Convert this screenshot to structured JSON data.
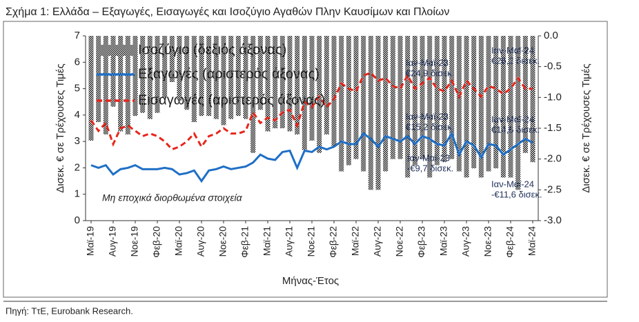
{
  "chart_data": {
    "type": "combo",
    "title": "Σχήμα 1: Ελλάδα – Εξαγωγές, Εισαγωγές και Ισοζύγιο Αγαθών Πλην Καυσίμων και Πλοίων",
    "xlabel": "Μήνας-Έτος",
    "ylabel": "Δισεκ. € σε Τρέχουσες Τιμές",
    "y2label": "Δισεκ. € σε Τρέχουσες Τιμές",
    "note": "Μη εποχικά διορθωμένα στοιχεία",
    "source": "Πηγή: ΤτΕ, Eurobank Research.",
    "legend": "upper left",
    "categories": [
      "Μαϊ-19",
      null,
      null,
      "Αυγ-19",
      null,
      null,
      "Νοε-19",
      null,
      null,
      "Φεβ-20",
      null,
      null,
      "Μαϊ-20",
      null,
      null,
      "Αυγ-20",
      null,
      null,
      "Νοε-20",
      null,
      null,
      "Φεβ-21",
      null,
      null,
      "Μαϊ-21",
      null,
      null,
      "Αυγ-21",
      null,
      null,
      "Νοε-21",
      null,
      null,
      "Φεβ-22",
      null,
      null,
      "Μαϊ-22",
      null,
      null,
      "Αυγ-22",
      null,
      null,
      "Νοε-22",
      null,
      null,
      "Φεβ-23",
      null,
      null,
      "Μαϊ-23",
      null,
      null,
      "Αυγ-23",
      null,
      null,
      "Νοε-23",
      null,
      null,
      "Φεβ-24",
      null,
      null,
      "Μαϊ-24"
    ],
    "ylim": [
      0,
      7
    ],
    "yticks": [
      0,
      1,
      2,
      3,
      4,
      5,
      6,
      7
    ],
    "y2lim": [
      -3,
      0
    ],
    "y2ticks": [
      {
        "value": -3,
        "label": "-3.0"
      },
      -2.5,
      {
        "value": -2,
        "label": "-2.0"
      },
      -1.5,
      {
        "value": -1,
        "label": "-1.0"
      },
      -0.5,
      {
        "value": 0,
        "label": "0.0"
      }
    ],
    "series": [
      {
        "name": "Ισοζύγιο (δεξιός άξονας)",
        "type": "bar",
        "axis": "y2",
        "color": "#9a9a9a",
        "values": [
          -1.7,
          -1.4,
          -1.6,
          -1.15,
          -1.55,
          -1.6,
          -1.3,
          -1.25,
          -1.35,
          -1.25,
          -1.0,
          -0.75,
          -1.05,
          -1.2,
          -1.4,
          -1.3,
          -1.3,
          -1.35,
          -1.45,
          -1.35,
          -1.3,
          -1.35,
          -1.9,
          -1.2,
          -1.55,
          -1.5,
          -1.5,
          -1.55,
          -1.6,
          -1.85,
          -1.7,
          -1.9,
          -1.6,
          -1.8,
          -2.2,
          -2.1,
          -2.0,
          -2.2,
          -2.5,
          -2.5,
          -2.2,
          -2.0,
          -2.0,
          -2.3,
          -2.1,
          -2.0,
          -2.3,
          -2.1,
          -2.05,
          -2.0,
          -2.2,
          -2.3,
          -2.15,
          -2.3,
          -2.2,
          -2.15,
          -2.3,
          -2.3,
          -2.5,
          -1.9,
          -2.05
        ]
      },
      {
        "name": "Εξαγωγές (αριστερός άξονας)",
        "type": "line",
        "color": "#1f6fc6",
        "values": [
          2.1,
          2.0,
          2.1,
          1.75,
          1.95,
          2.0,
          2.1,
          1.95,
          1.95,
          1.95,
          2.0,
          1.95,
          1.75,
          1.8,
          1.9,
          1.5,
          1.9,
          1.95,
          2.05,
          1.95,
          2.0,
          2.05,
          2.2,
          2.5,
          2.35,
          2.3,
          2.6,
          2.65,
          2.0,
          2.65,
          2.6,
          2.8,
          2.7,
          2.8,
          3.0,
          2.9,
          2.9,
          3.3,
          3.1,
          2.8,
          3.2,
          3.1,
          3.0,
          3.2,
          2.9,
          3.2,
          3.1,
          2.9,
          2.85,
          3.3,
          2.5,
          3.0,
          2.85,
          2.4,
          2.9,
          2.85,
          2.5,
          2.7,
          2.9,
          3.1,
          2.95
        ]
      },
      {
        "name": "Εισαγωγές (αριστερός άξονας)",
        "type": "dashed",
        "color": "#e8251b",
        "values": [
          3.8,
          3.4,
          3.7,
          2.9,
          3.5,
          3.6,
          3.4,
          3.2,
          3.3,
          3.2,
          3.0,
          2.7,
          2.8,
          3.0,
          3.3,
          2.8,
          3.2,
          3.3,
          3.5,
          3.3,
          3.3,
          3.4,
          4.1,
          3.7,
          3.9,
          3.8,
          4.1,
          4.2,
          3.6,
          4.5,
          4.3,
          4.7,
          4.3,
          4.6,
          5.2,
          5.0,
          4.9,
          5.5,
          5.6,
          5.3,
          5.4,
          5.1,
          5.0,
          5.5,
          5.0,
          5.2,
          5.4,
          5.0,
          4.9,
          5.3,
          4.7,
          5.3,
          5.0,
          4.7,
          5.1,
          5.0,
          4.8,
          5.0,
          5.4,
          5.0,
          5.0
        ]
      }
    ],
    "annotations": [
      [
        "Ιαν-Μαϊ-23",
        "€24,9 δισεκ."
      ],
      [
        "Ιαν-Μαϊ-24",
        "€26,2 δισεκ."
      ],
      [
        "Ιαν-Μαϊ-23",
        "€15,2 δισεκ."
      ],
      [
        "Ιαν-Μαϊ-24",
        "€14,6 δισεκ."
      ],
      [
        "Ιαν-Μαϊ-23",
        "-€9,7 δισεκ."
      ],
      [
        "Ιαν-Μαϊ-24",
        "-€11,6 δισεκ."
      ]
    ]
  }
}
